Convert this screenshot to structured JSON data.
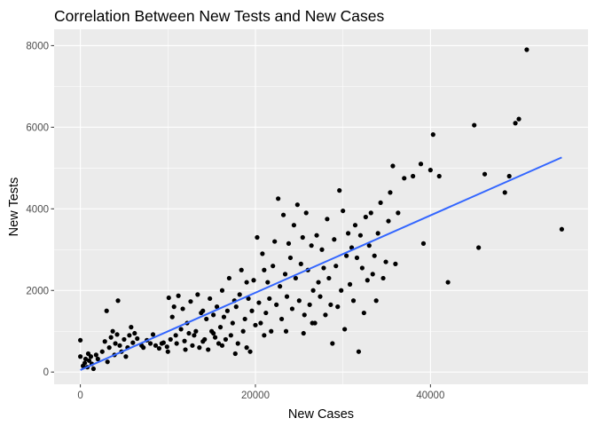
{
  "chart_data": {
    "type": "scatter",
    "title": "Correlation Between New Tests and New Cases",
    "xlabel": "New Cases",
    "ylabel": "New Tests",
    "xlim": [
      -3000,
      58000
    ],
    "ylim": [
      -300,
      8400
    ],
    "x_ticks": [
      0,
      20000,
      40000
    ],
    "x_tick_labels": [
      "0",
      "20000",
      "40000"
    ],
    "y_ticks": [
      0,
      2000,
      4000,
      6000,
      8000
    ],
    "y_tick_labels": [
      "0",
      "2000",
      "4000",
      "6000",
      "8000"
    ],
    "grid": true,
    "colors": {
      "panel": "#ebebeb",
      "grid": "#ffffff",
      "point": "#000000",
      "trend": "#3366ff"
    },
    "trend_line": {
      "x": [
        0,
        55000
      ],
      "y": [
        50,
        5260
      ]
    },
    "points": [
      [
        0,
        780
      ],
      [
        0,
        380
      ],
      [
        300,
        150
      ],
      [
        500,
        220
      ],
      [
        600,
        320
      ],
      [
        800,
        120
      ],
      [
        900,
        450
      ],
      [
        1000,
        280
      ],
      [
        1200,
        380
      ],
      [
        1300,
        200
      ],
      [
        1500,
        80
      ],
      [
        1800,
        420
      ],
      [
        2000,
        320
      ],
      [
        2500,
        500
      ],
      [
        2800,
        750
      ],
      [
        3000,
        1500
      ],
      [
        3100,
        250
      ],
      [
        3300,
        600
      ],
      [
        3500,
        850
      ],
      [
        3700,
        1000
      ],
      [
        3900,
        420
      ],
      [
        4000,
        700
      ],
      [
        4200,
        920
      ],
      [
        4300,
        1750
      ],
      [
        4500,
        650
      ],
      [
        4700,
        500
      ],
      [
        5000,
        800
      ],
      [
        5200,
        380
      ],
      [
        5400,
        600
      ],
      [
        5600,
        900
      ],
      [
        5800,
        1100
      ],
      [
        6000,
        720
      ],
      [
        6200,
        950
      ],
      [
        6500,
        820
      ],
      [
        7000,
        650
      ],
      [
        7200,
        600
      ],
      [
        7600,
        780
      ],
      [
        8000,
        700
      ],
      [
        8300,
        920
      ],
      [
        8600,
        650
      ],
      [
        9000,
        580
      ],
      [
        9300,
        700
      ],
      [
        9500,
        720
      ],
      [
        9900,
        620
      ],
      [
        10000,
        500
      ],
      [
        10100,
        1820
      ],
      [
        10300,
        800
      ],
      [
        10500,
        1350
      ],
      [
        10700,
        1600
      ],
      [
        10900,
        900
      ],
      [
        11000,
        700
      ],
      [
        11200,
        1870
      ],
      [
        11500,
        1050
      ],
      [
        11700,
        1550
      ],
      [
        11900,
        760
      ],
      [
        12000,
        550
      ],
      [
        12200,
        1200
      ],
      [
        12400,
        950
      ],
      [
        12600,
        1730
      ],
      [
        12800,
        650
      ],
      [
        13000,
        900
      ],
      [
        13200,
        1000
      ],
      [
        13400,
        1900
      ],
      [
        13600,
        600
      ],
      [
        13800,
        1450
      ],
      [
        14000,
        750
      ],
      [
        14200,
        800
      ],
      [
        14400,
        1300
      ],
      [
        14600,
        550
      ],
      [
        14800,
        1800
      ],
      [
        15000,
        1000
      ],
      [
        15200,
        1400
      ],
      [
        15400,
        850
      ],
      [
        15600,
        1600
      ],
      [
        15800,
        700
      ],
      [
        16000,
        1100
      ],
      [
        16200,
        2000
      ],
      [
        16400,
        1350
      ],
      [
        16600,
        800
      ],
      [
        16800,
        1500
      ],
      [
        17000,
        2300
      ],
      [
        17200,
        900
      ],
      [
        17400,
        1200
      ],
      [
        17600,
        1750
      ],
      [
        17800,
        1600
      ],
      [
        18000,
        700
      ],
      [
        18200,
        1900
      ],
      [
        18400,
        2500
      ],
      [
        18600,
        1000
      ],
      [
        18800,
        1300
      ],
      [
        19000,
        2200
      ],
      [
        19200,
        1800
      ],
      [
        19400,
        500
      ],
      [
        19600,
        1500
      ],
      [
        19800,
        2250
      ],
      [
        20000,
        1150
      ],
      [
        20200,
        3300
      ],
      [
        20400,
        1700
      ],
      [
        20600,
        1200
      ],
      [
        20800,
        2900
      ],
      [
        21000,
        2500
      ],
      [
        21200,
        1450
      ],
      [
        21400,
        2200
      ],
      [
        21600,
        1800
      ],
      [
        21800,
        1000
      ],
      [
        22000,
        2600
      ],
      [
        22200,
        3200
      ],
      [
        22400,
        1650
      ],
      [
        22600,
        4250
      ],
      [
        22800,
        2100
      ],
      [
        23000,
        1300
      ],
      [
        23200,
        3850
      ],
      [
        23400,
        2400
      ],
      [
        23600,
        1850
      ],
      [
        23800,
        3150
      ],
      [
        24000,
        2800
      ],
      [
        24200,
        1550
      ],
      [
        24400,
        3600
      ],
      [
        24600,
        2300
      ],
      [
        24800,
        4100
      ],
      [
        25000,
        1750
      ],
      [
        25200,
        2650
      ],
      [
        25400,
        3300
      ],
      [
        25600,
        1400
      ],
      [
        25800,
        3900
      ],
      [
        26000,
        2500
      ],
      [
        26200,
        1650
      ],
      [
        26400,
        3100
      ],
      [
        26600,
        2000
      ],
      [
        26800,
        1200
      ],
      [
        27000,
        3350
      ],
      [
        27200,
        2200
      ],
      [
        27400,
        1850
      ],
      [
        27600,
        3000
      ],
      [
        27800,
        2550
      ],
      [
        28000,
        1400
      ],
      [
        28200,
        3750
      ],
      [
        28400,
        2300
      ],
      [
        28600,
        1650
      ],
      [
        28800,
        700
      ],
      [
        29000,
        3250
      ],
      [
        29200,
        2600
      ],
      [
        29400,
        1600
      ],
      [
        29600,
        4450
      ],
      [
        29800,
        2000
      ],
      [
        30000,
        3950
      ],
      [
        30200,
        1050
      ],
      [
        30400,
        2850
      ],
      [
        30600,
        3400
      ],
      [
        30800,
        2150
      ],
      [
        31000,
        3050
      ],
      [
        31200,
        1750
      ],
      [
        31400,
        3600
      ],
      [
        31600,
        2800
      ],
      [
        31800,
        500
      ],
      [
        32000,
        3350
      ],
      [
        32200,
        2550
      ],
      [
        32400,
        1450
      ],
      [
        32600,
        3800
      ],
      [
        32800,
        2250
      ],
      [
        33000,
        3100
      ],
      [
        33200,
        3900
      ],
      [
        33400,
        2400
      ],
      [
        33600,
        2850
      ],
      [
        33800,
        1750
      ],
      [
        34000,
        3400
      ],
      [
        34300,
        4150
      ],
      [
        34600,
        2300
      ],
      [
        34900,
        2700
      ],
      [
        35200,
        3700
      ],
      [
        35400,
        4400
      ],
      [
        35700,
        5050
      ],
      [
        36000,
        2650
      ],
      [
        36300,
        3900
      ],
      [
        37000,
        4750
      ],
      [
        38000,
        4800
      ],
      [
        38900,
        5100
      ],
      [
        39200,
        3150
      ],
      [
        40000,
        4950
      ],
      [
        40300,
        5820
      ],
      [
        41000,
        4800
      ],
      [
        42000,
        2200
      ],
      [
        45000,
        6050
      ],
      [
        45500,
        3050
      ],
      [
        46200,
        4850
      ],
      [
        48500,
        4400
      ],
      [
        49000,
        4800
      ],
      [
        49700,
        6100
      ],
      [
        50100,
        6200
      ],
      [
        51000,
        7900
      ],
      [
        55000,
        3500
      ],
      [
        23500,
        1000
      ],
      [
        21000,
        900
      ],
      [
        25500,
        950
      ],
      [
        26500,
        1200
      ],
      [
        19000,
        600
      ],
      [
        17700,
        450
      ],
      [
        16200,
        650
      ],
      [
        15200,
        950
      ],
      [
        14000,
        1500
      ]
    ]
  }
}
